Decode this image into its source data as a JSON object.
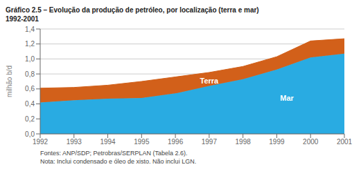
{
  "chart_data": {
    "type": "area",
    "stacked": true,
    "title": "Gráfico 2.5 – Evolução da produção de petróleo, por localização (terra e mar)",
    "subtitle": "1992-2001",
    "y_label": "milhão b/d",
    "x": [
      1992,
      1993,
      1994,
      1995,
      1996,
      1997,
      1998,
      1999,
      2000,
      2001
    ],
    "series": [
      {
        "name": "Mar",
        "color": "#29ABE2",
        "values": [
          0.42,
          0.45,
          0.47,
          0.48,
          0.54,
          0.64,
          0.73,
          0.86,
          1.02,
          1.07
        ]
      },
      {
        "name": "Terra",
        "color": "#D2601A",
        "values": [
          0.19,
          0.17,
          0.18,
          0.22,
          0.22,
          0.18,
          0.17,
          0.17,
          0.22,
          0.2
        ]
      }
    ],
    "xlim": [
      1992,
      2001
    ],
    "xticks": [
      1992,
      1993,
      1994,
      1995,
      1996,
      1997,
      1998,
      1999,
      2000,
      2001
    ],
    "ylim": [
      0,
      1.4
    ],
    "yticks": [
      {
        "value": 0.0,
        "label": "0,0"
      },
      {
        "value": 0.2,
        "label": "0,2"
      },
      {
        "value": 0.4,
        "label": "0,4"
      },
      {
        "value": 0.6,
        "label": "0,6"
      },
      {
        "value": 0.8,
        "label": "0,8"
      },
      {
        "value": 1.0,
        "label": "1,0"
      },
      {
        "value": 1.2,
        "label": "1,2"
      },
      {
        "value": 1.4,
        "label": "1,4"
      }
    ],
    "grid": true,
    "annotations": [
      {
        "text": "Terra",
        "x": 1997.0,
        "y": 0.71
      },
      {
        "text": "Mar",
        "x": 1999.3,
        "y": 0.48
      }
    ],
    "footnotes": [
      "Fontes: ANP/SDP; Petrobras/SERPLAN (Tabela 2.6).",
      "Nota: Inclui condensado e óleo de xisto. Não inclui LGN."
    ]
  }
}
